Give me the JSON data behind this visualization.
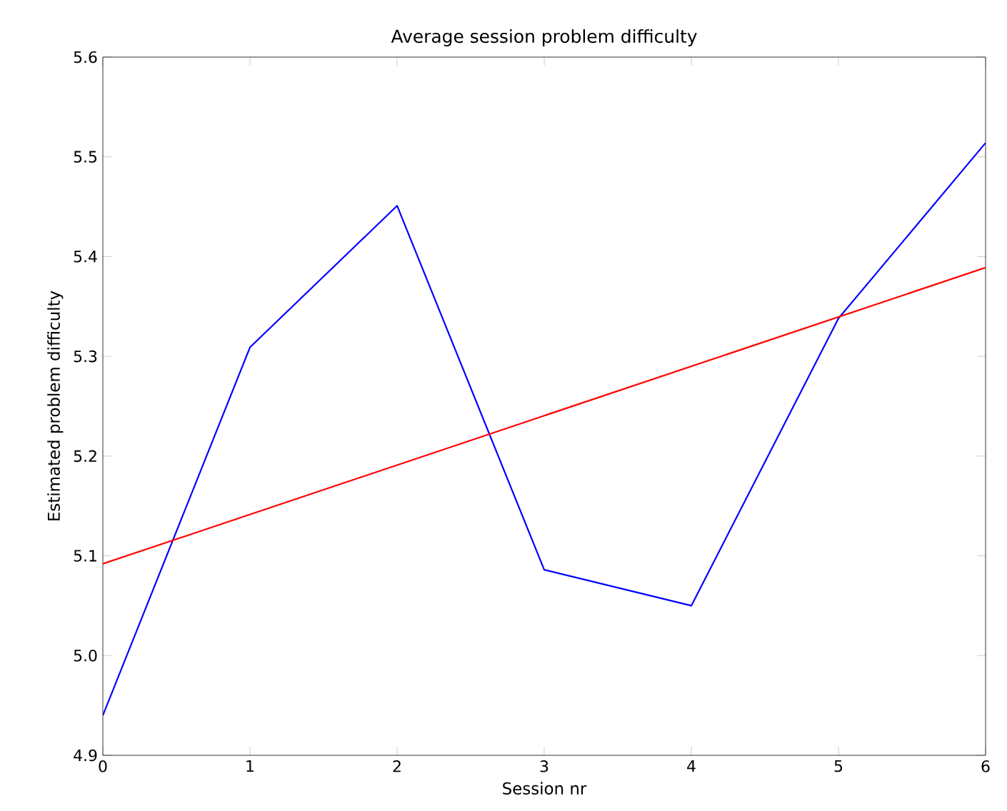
{
  "chart_data": {
    "type": "line",
    "title": "Average session problem difficulty",
    "xlabel": "Session nr",
    "ylabel": "Estimated problem difficulty",
    "xlim": [
      0,
      6
    ],
    "xticks": [
      0,
      1,
      2,
      3,
      4,
      5,
      6
    ],
    "ylim": [
      4.9,
      5.6
    ],
    "yticks": [
      4.9,
      {
        "value": 5.0,
        "label": "5.0"
      },
      5.1,
      5.2,
      5.3,
      5.4,
      5.5,
      5.6
    ],
    "series": [
      {
        "color": "#0000ff",
        "x": [
          0,
          1,
          2,
          3,
          4,
          5,
          6
        ],
        "values": [
          4.94,
          5.309,
          5.451,
          5.086,
          5.05,
          5.338,
          5.514
        ]
      },
      {
        "color": "#ff0000",
        "x": [
          0,
          6
        ],
        "values": [
          5.092,
          5.389
        ]
      }
    ]
  }
}
